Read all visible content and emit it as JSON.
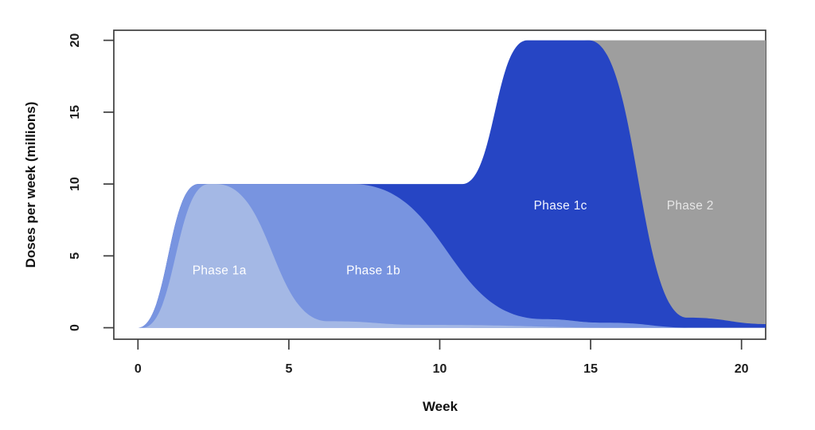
{
  "figure": {
    "background": "#ffffff",
    "description": "Area chart of vaccine dose delivery phases over time"
  },
  "chart_data": {
    "type": "area",
    "title": "",
    "xlabel": "Week",
    "ylabel": "Doses per week (millions)",
    "xticks": [
      0,
      5,
      10,
      15,
      20
    ],
    "yticks": [
      0,
      5,
      10,
      15,
      20
    ],
    "xlim": [
      -0.8,
      20.8
    ],
    "ylim": [
      -0.8,
      20.7
    ],
    "grid": false,
    "legend_position": "none",
    "axis_color": "#3d3d3d",
    "tick_label_color": "#1c1c1c",
    "series": [
      {
        "name": "Phase 2",
        "label": "Phase 2",
        "color": "#9e9e9e",
        "label_color": "#e6e6e6",
        "label_x": 18.3,
        "label_y": 8.5,
        "points": [
          [
            11.0,
            0
          ],
          [
            14.9,
            20
          ],
          [
            21.0,
            20
          ]
        ]
      },
      {
        "name": "Phase 1c",
        "label": "Phase 1c",
        "color": "#2645c4",
        "label_color": "#f2f5ff",
        "label_x": 14.0,
        "label_y": 8.5,
        "points": [
          [
            0.0,
            0
          ],
          [
            2.0,
            10
          ],
          [
            10.75,
            10
          ],
          [
            12.9,
            20
          ],
          [
            14.95,
            20
          ],
          [
            18.2,
            0.7
          ],
          [
            21.0,
            0.25
          ]
        ]
      },
      {
        "name": "Phase 1b",
        "label": "Phase 1b",
        "color": "#7894e0",
        "label_color": "#ffffff",
        "label_x": 7.8,
        "label_y": 4.0,
        "points": [
          [
            0.0,
            0
          ],
          [
            2.0,
            10
          ],
          [
            7.1,
            10
          ],
          [
            13.4,
            0.6
          ],
          [
            15.5,
            0.35
          ],
          [
            18.5,
            0
          ]
        ]
      },
      {
        "name": "Phase 1a",
        "label": "Phase 1a",
        "color": "#a4b8e5",
        "label_color": "#ffffff",
        "label_x": 2.7,
        "label_y": 4.0,
        "points": [
          [
            0.15,
            0
          ],
          [
            2.35,
            10
          ],
          [
            2.6,
            10
          ],
          [
            6.3,
            0.45
          ],
          [
            9.5,
            0.2
          ],
          [
            16.6,
            0
          ]
        ]
      }
    ]
  }
}
